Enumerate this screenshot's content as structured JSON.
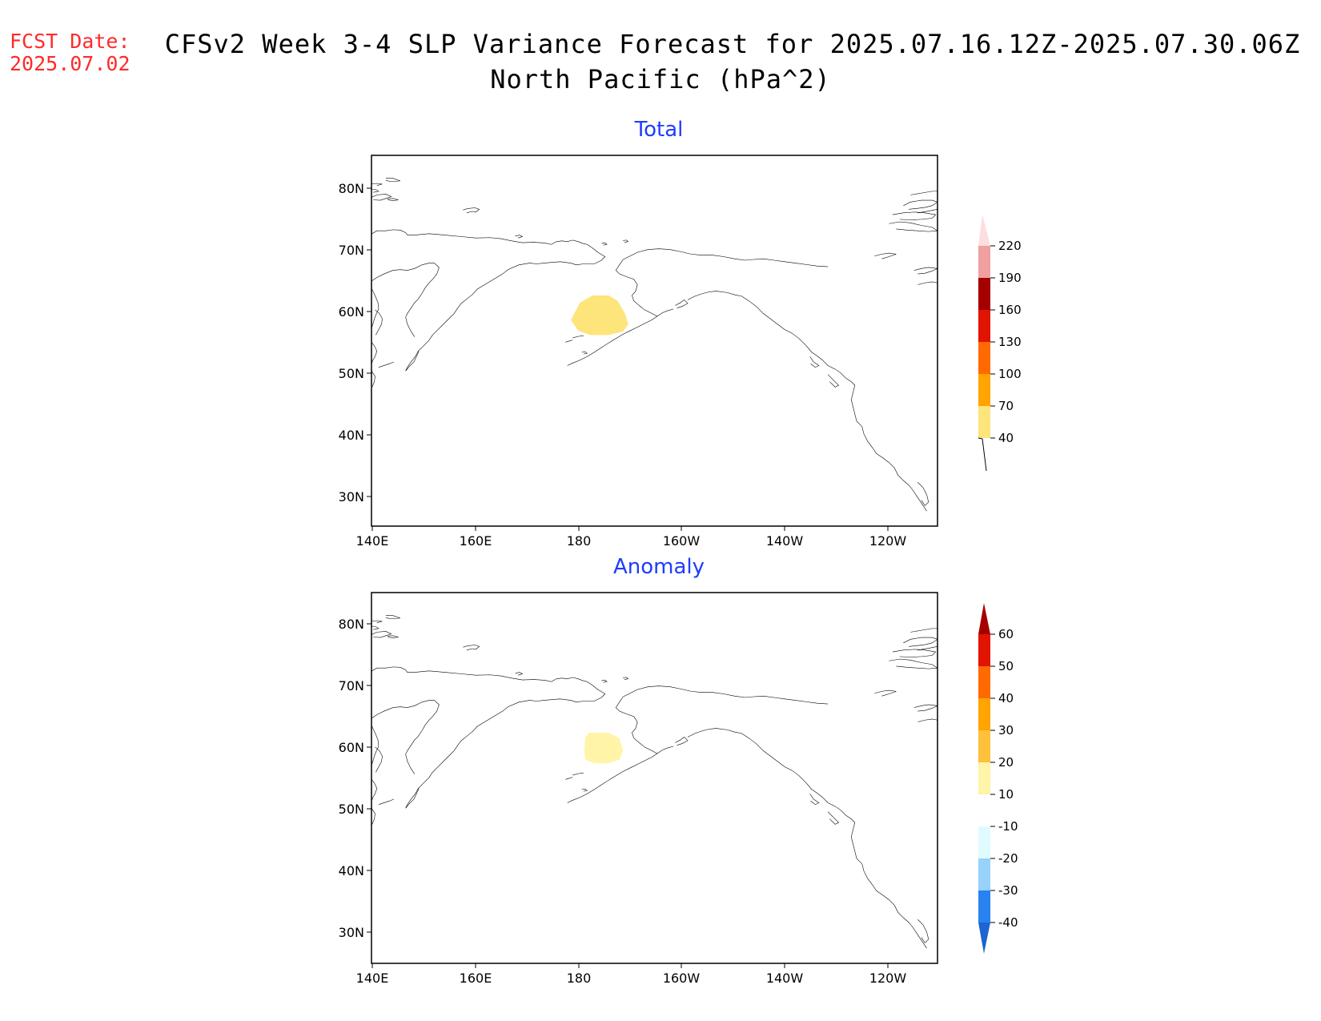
{
  "header": {
    "fcst_label": "FCST Date:",
    "fcst_date": "2025.07.02",
    "title_line1": "CFSv2 Week 3-4 SLP Variance Forecast for 2025.07.16.12Z-2025.07.30.06Z",
    "title_line2": "North Pacific (hPa^2)",
    "title_color": "#000000",
    "fcst_color": "#ff2a2a"
  },
  "map": {
    "region": "North Pacific",
    "lon_ticks": [
      "140E",
      "160E",
      "180",
      "160W",
      "140W",
      "120W"
    ],
    "lat_ticks": [
      "80N",
      "70N",
      "60N",
      "50N",
      "40N",
      "30N"
    ]
  },
  "panels": [
    {
      "title": "Total",
      "shaded_region_color": "#fde47b",
      "colorbar": {
        "labels": [
          "40",
          "70",
          "100",
          "130",
          "160",
          "190",
          "220"
        ],
        "colors": [
          "#fde47b",
          "#ffa400",
          "#ff6a00",
          "#e11400",
          "#a50000",
          "#f0a0a0",
          "#fcdede"
        ]
      }
    },
    {
      "title": "Anomaly",
      "shaded_region_color": "#fff4a8",
      "colorbar": {
        "labels": [
          "60",
          "50",
          "40",
          "30",
          "20",
          "10",
          "-10",
          "-20",
          "-30",
          "-40"
        ],
        "colors": [
          "#a50000",
          "#e11400",
          "#ff6a00",
          "#ffa400",
          "#ffc03a",
          "#fff4a8",
          "#ffffff",
          "#e0fbff",
          "#96d2fa",
          "#2882f0",
          "#1e64d2"
        ]
      }
    }
  ]
}
